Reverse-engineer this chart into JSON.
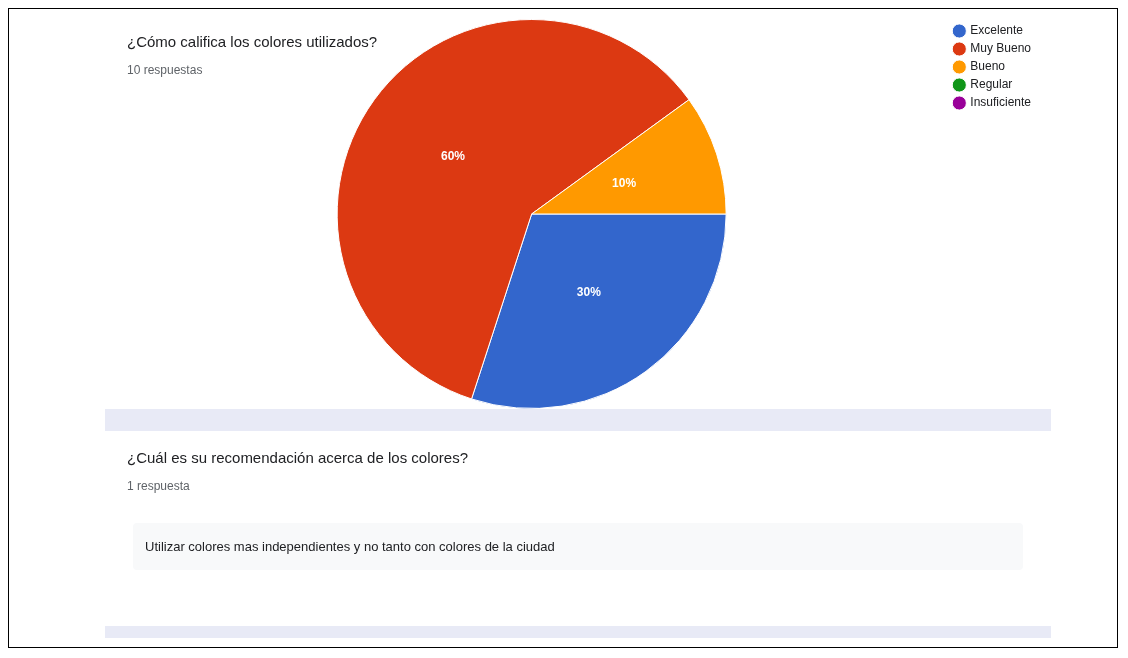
{
  "chart_data": [
    {
      "type": "pie",
      "title": "¿Cómo califica los colores utilizados?",
      "subtitle": "10 respuestas",
      "categories": [
        "Excelente",
        "Muy Bueno",
        "Bueno",
        "Regular",
        "Insuficiente"
      ],
      "values": [
        30,
        60,
        10,
        0,
        0
      ],
      "colors": [
        "#3366cc",
        "#dc3912",
        "#ff9900",
        "#109618",
        "#990099"
      ],
      "value_labels": [
        "30%",
        "60%",
        "10%",
        null,
        null
      ],
      "legend": "right"
    },
    {
      "type": "other",
      "title": "¿Cuál es su recomendación acerca de los colores?",
      "subtitle": "1 respuesta",
      "annotations": [
        "Utilizar colores mas independientes y no tanto con colores de la ciudad"
      ]
    }
  ]
}
